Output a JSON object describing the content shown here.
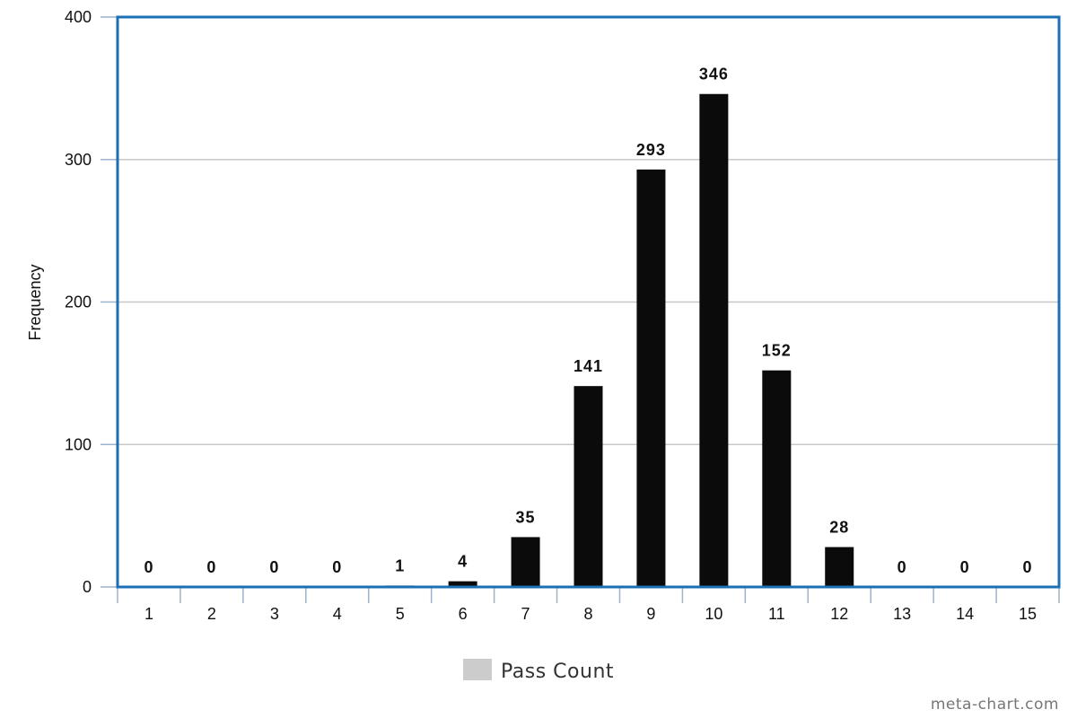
{
  "chart_data": {
    "type": "bar",
    "categories": [
      "1",
      "2",
      "3",
      "4",
      "5",
      "6",
      "7",
      "8",
      "9",
      "10",
      "11",
      "12",
      "13",
      "14",
      "15"
    ],
    "series": [
      {
        "name": "Pass Count",
        "values": [
          0,
          0,
          0,
          0,
          1,
          4,
          35,
          141,
          293,
          346,
          152,
          28,
          0,
          0,
          0
        ]
      }
    ],
    "data_labels": [
      "0",
      "0",
      "0",
      "0",
      "1",
      "4",
      "35",
      "141",
      "293",
      "346",
      "152",
      "28",
      "0",
      "0",
      "0"
    ],
    "title": "",
    "xlabel": "",
    "ylabel": "Frequency",
    "ylim": [
      0,
      400
    ],
    "yticks": [
      0,
      100,
      200,
      300,
      400
    ],
    "ytick_labels": [
      "0",
      "100",
      "200",
      "300",
      "400"
    ],
    "grid": true,
    "legend_position": "bottom-center",
    "colors": {
      "bar": "#0b0b0b",
      "grid": "#c8c8c8",
      "frame": "#1c6fb5",
      "axis": "#9bb3cc",
      "legend_swatch": "#cccccc"
    }
  },
  "credit": "meta-chart.com"
}
